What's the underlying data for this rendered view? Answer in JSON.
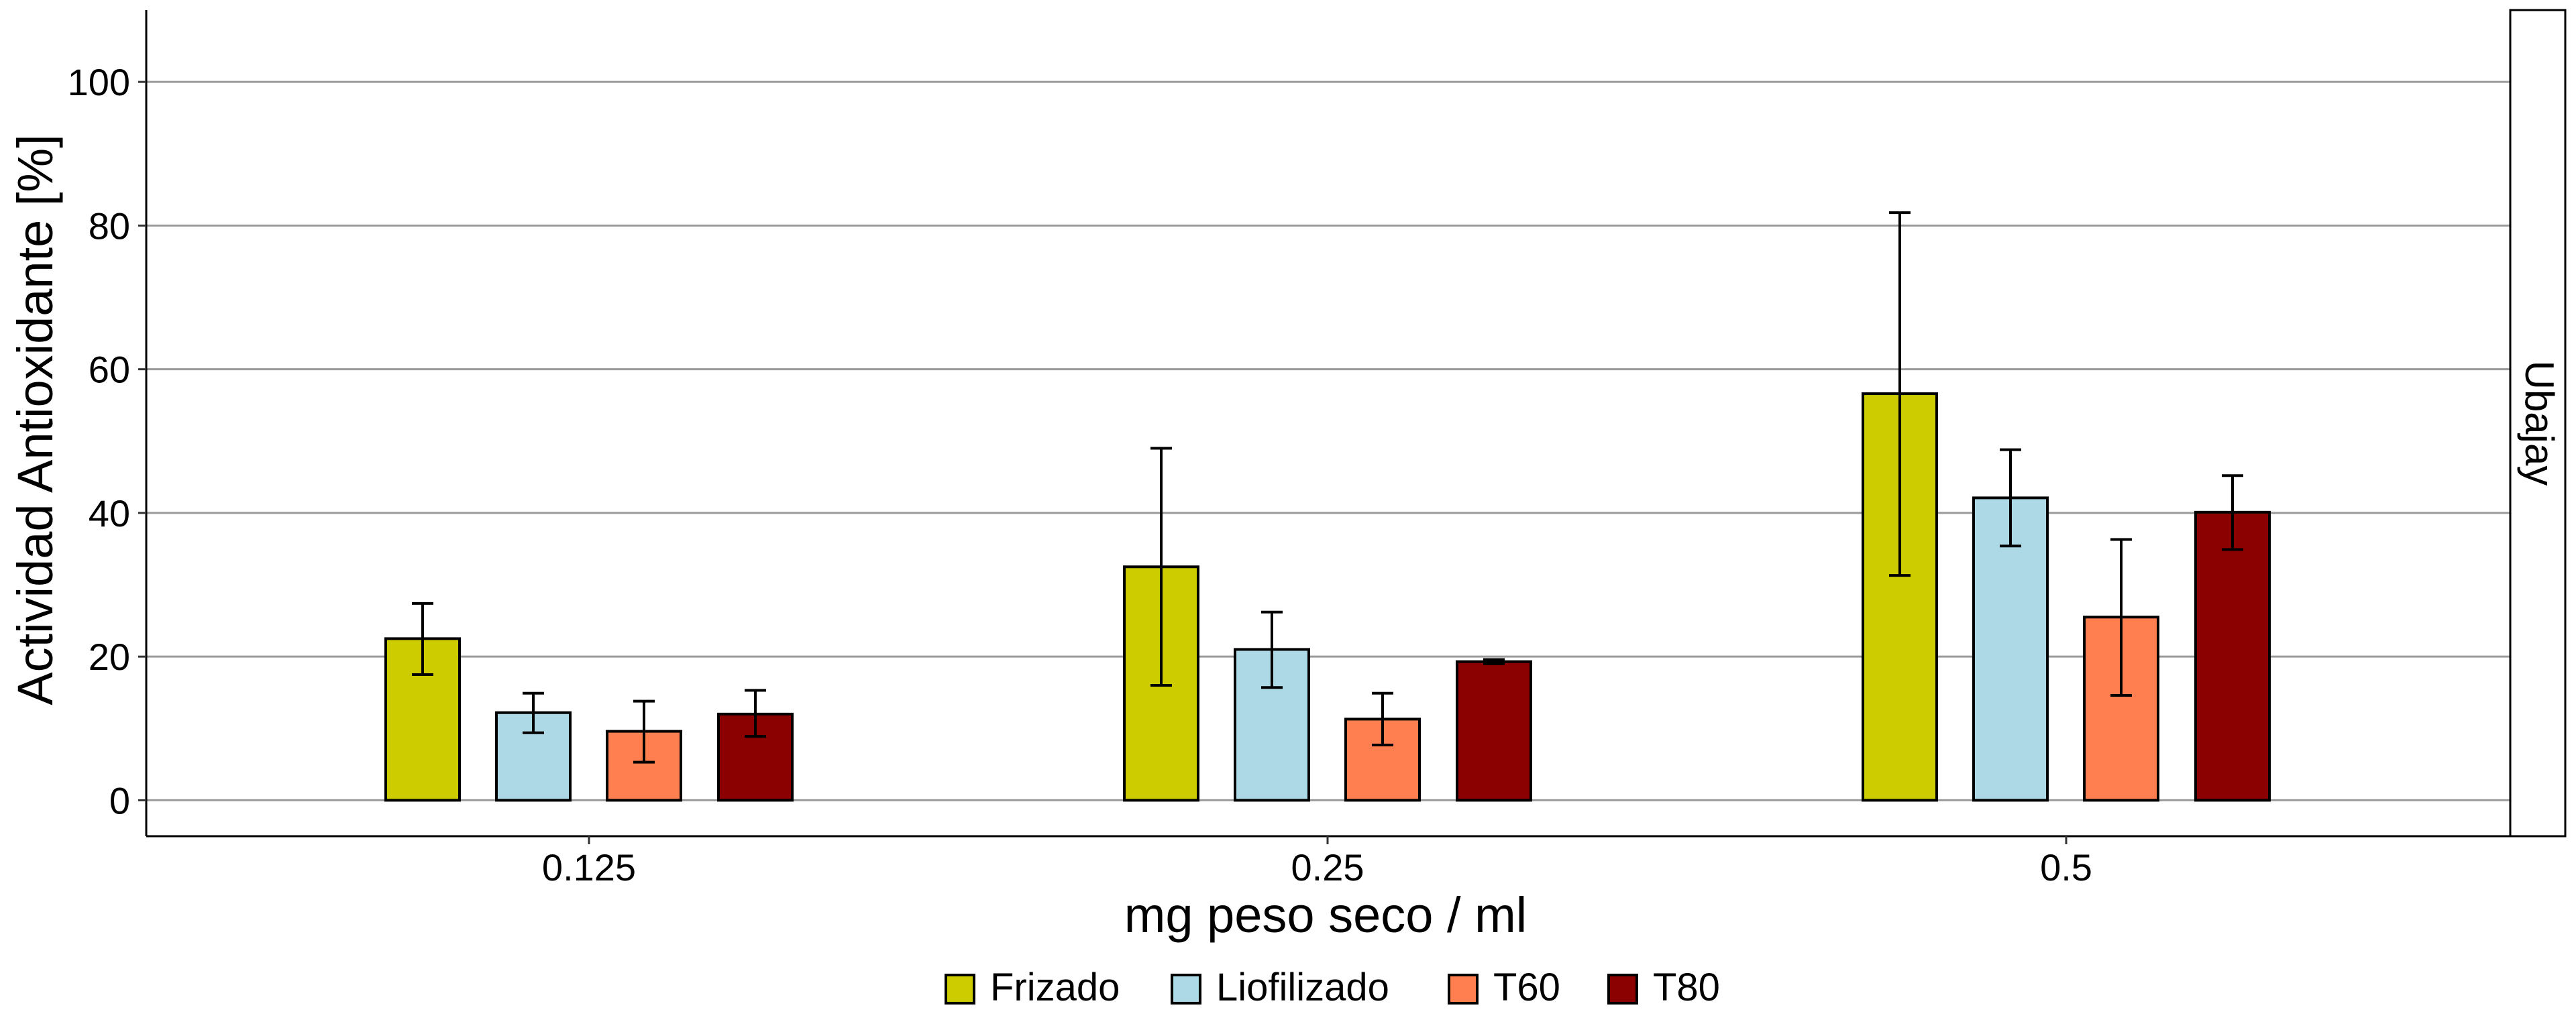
{
  "chart_data": {
    "type": "bar",
    "xlabel": "mg peso seco / ml",
    "ylabel": "Actividad Antioxidante [%]",
    "facet_label": "Ubajay",
    "ylim": [
      -5,
      110
    ],
    "y_ticks": [
      "0",
      "20",
      "40",
      "60",
      "80",
      "100"
    ],
    "grid": "horizontal major lines",
    "legend_position": "bottom",
    "categories": [
      "0.125",
      "0.25",
      "0.5"
    ],
    "series": [
      {
        "name": "Frizado",
        "color": "#CCCC00",
        "values": [
          22.5,
          32.5,
          56.6
        ],
        "err_low": [
          17.5,
          16.0,
          31.3
        ],
        "err_high": [
          27.4,
          49.0,
          81.8
        ]
      },
      {
        "name": "Liofilizado",
        "color": "#ADD8E6",
        "values": [
          12.2,
          21.0,
          42.1
        ],
        "err_low": [
          9.4,
          15.7,
          35.4
        ],
        "err_high": [
          14.9,
          26.2,
          48.8
        ]
      },
      {
        "name": "T60",
        "color": "#FF7F50",
        "values": [
          9.6,
          11.3,
          25.5
        ],
        "err_low": [
          5.3,
          7.7,
          14.6
        ],
        "err_high": [
          13.8,
          14.9,
          36.3
        ]
      },
      {
        "name": "T80",
        "color": "#8B0000",
        "values": [
          12.0,
          19.3,
          40.1
        ],
        "err_low": [
          8.9,
          19.0,
          34.9
        ],
        "err_high": [
          15.3,
          19.6,
          45.2
        ]
      }
    ]
  }
}
